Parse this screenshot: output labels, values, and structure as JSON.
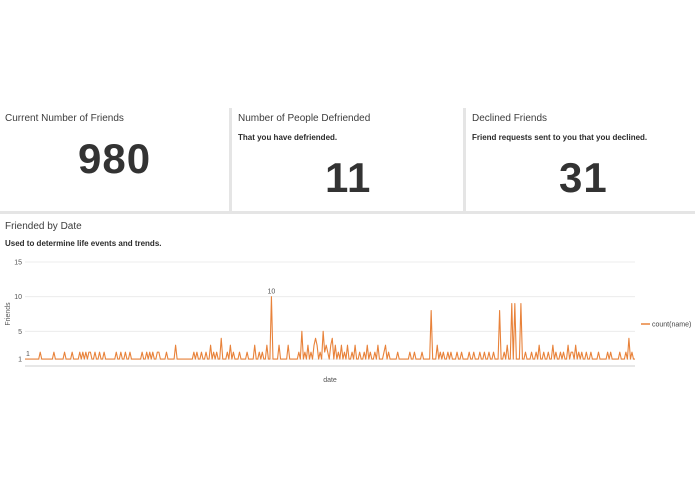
{
  "kpis": [
    {
      "title": "Current Number of Friends",
      "subtitle": "",
      "value": "980"
    },
    {
      "title": "Number of People Defriended",
      "subtitle": "That you have defriended.",
      "value": "11"
    },
    {
      "title": "Declined Friends",
      "subtitle": "Friend requests sent to you that you declined.",
      "value": "31"
    }
  ],
  "chart_card": {
    "title": "Friended by Date",
    "subtitle": "Used to determine life events and trends."
  },
  "chart_data": {
    "type": "line",
    "title": "Friended by Date",
    "xlabel": "date",
    "ylabel": "Friends",
    "ylim": [
      0,
      15
    ],
    "yticks": [
      15,
      10,
      5,
      1
    ],
    "grid": true,
    "legend_position": "right",
    "series": [
      {
        "name": "count(name)",
        "color": "#e8823a",
        "values": [
          1,
          1,
          1,
          1,
          1,
          1,
          1,
          1,
          1,
          1,
          2,
          1,
          1,
          1,
          1,
          1,
          1,
          1,
          1,
          2,
          1,
          1,
          1,
          1,
          1,
          1,
          2,
          1,
          1,
          1,
          1,
          2,
          1,
          1,
          1,
          1,
          2,
          1,
          2,
          1,
          2,
          1,
          2,
          2,
          1,
          1,
          2,
          1,
          1,
          2,
          1,
          1,
          2,
          1,
          1,
          1,
          1,
          1,
          1,
          1,
          2,
          1,
          1,
          2,
          1,
          1,
          2,
          1,
          1,
          2,
          1,
          1,
          1,
          1,
          1,
          1,
          1,
          2,
          1,
          1,
          2,
          1,
          2,
          1,
          2,
          1,
          1,
          2,
          2,
          1,
          1,
          1,
          1,
          2,
          1,
          1,
          1,
          1,
          1,
          3,
          1,
          1,
          1,
          1,
          1,
          1,
          1,
          1,
          1,
          1,
          1,
          2,
          1,
          2,
          1,
          1,
          2,
          1,
          1,
          2,
          1,
          1,
          3,
          1,
          2,
          1,
          2,
          1,
          1,
          4,
          1,
          1,
          1,
          2,
          1,
          3,
          1,
          2,
          1,
          1,
          1,
          2,
          1,
          1,
          1,
          1,
          2,
          1,
          1,
          1,
          1,
          3,
          1,
          1,
          2,
          1,
          2,
          1,
          1,
          3,
          1,
          1,
          10,
          1,
          1,
          1,
          1,
          3,
          1,
          1,
          1,
          1,
          1,
          3,
          1,
          1,
          1,
          1,
          1,
          1,
          2,
          1,
          5,
          1,
          2,
          1,
          3,
          1,
          2,
          1,
          3,
          4,
          3,
          1,
          2,
          1,
          5,
          2,
          3,
          2,
          1,
          3,
          4,
          1,
          3,
          1,
          2,
          1,
          3,
          1,
          2,
          1,
          3,
          1,
          1,
          2,
          1,
          3,
          1,
          1,
          2,
          1,
          1,
          2,
          1,
          3,
          1,
          2,
          1,
          1,
          2,
          1,
          3,
          1,
          1,
          1,
          2,
          3,
          1,
          2,
          1,
          1,
          1,
          1,
          1,
          2,
          1,
          1,
          1,
          1,
          1,
          1,
          1,
          2,
          1,
          1,
          2,
          1,
          1,
          1,
          1,
          2,
          1,
          1,
          1,
          1,
          1,
          8,
          1,
          1,
          1,
          3,
          1,
          2,
          1,
          2,
          1,
          1,
          2,
          1,
          2,
          1,
          1,
          1,
          2,
          1,
          1,
          2,
          1,
          1,
          1,
          1,
          2,
          1,
          1,
          2,
          1,
          1,
          1,
          2,
          1,
          1,
          2,
          1,
          1,
          2,
          1,
          1,
          2,
          1,
          1,
          1,
          8,
          1,
          1,
          2,
          1,
          3,
          1,
          1,
          9,
          1,
          9,
          1,
          1,
          1,
          9,
          1,
          1,
          2,
          1,
          1,
          1,
          2,
          1,
          1,
          2,
          1,
          3,
          1,
          1,
          2,
          1,
          1,
          2,
          1,
          1,
          3,
          1,
          2,
          1,
          1,
          2,
          1,
          2,
          1,
          1,
          3,
          1,
          2,
          2,
          1,
          3,
          1,
          2,
          1,
          2,
          1,
          1,
          2,
          1,
          1,
          2,
          1,
          1,
          1,
          1,
          2,
          1,
          1,
          1,
          1,
          1,
          2,
          1,
          2,
          1,
          1,
          1,
          1,
          1,
          2,
          1,
          1,
          1,
          2,
          1,
          4,
          1,
          2,
          1,
          1
        ]
      }
    ],
    "annotations": [
      {
        "label": "10",
        "value": 10
      },
      {
        "label": "1",
        "value": 1
      }
    ]
  }
}
